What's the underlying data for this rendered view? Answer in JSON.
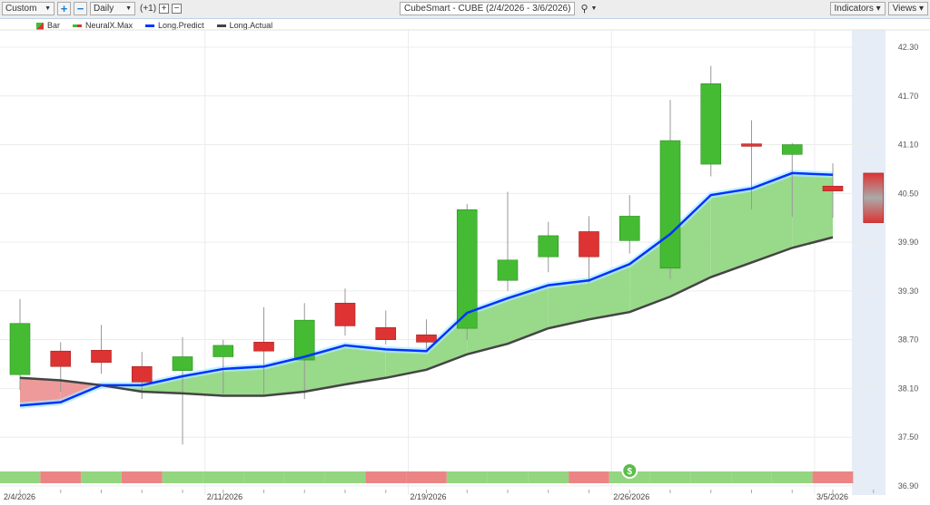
{
  "toolbar": {
    "range_select": "Custom",
    "interval_select": "Daily",
    "offset": "(+1)",
    "title": "CubeSmart - CUBE (2/4/2026 - 3/6/2026)",
    "indicators": "Indicators",
    "views": "Views"
  },
  "legend": [
    {
      "label": "Bar"
    },
    {
      "label": "NeuralX.Max"
    },
    {
      "label": "Long.Predict",
      "color": "#0033ff"
    },
    {
      "label": "Long.Actual",
      "color": "#444444"
    }
  ],
  "colors": {
    "up": "#44bb33",
    "down": "#dd3333",
    "fill_up": "#99d98a",
    "fill_down": "#ef9a9a",
    "forecast_bg": "#e6edf7"
  },
  "chart_data": {
    "type": "candlestick",
    "ylim": [
      36.9,
      42.3
    ],
    "yticks": [
      "42.30",
      "41.70",
      "41.10",
      "40.50",
      "39.90",
      "39.30",
      "38.70",
      "38.10",
      "37.50",
      "36.90"
    ],
    "xtick_labels": [
      {
        "index": 0,
        "label": "2/4/2026"
      },
      {
        "index": 5,
        "label": "2/11/2026"
      },
      {
        "index": 10,
        "label": "2/19/2026"
      },
      {
        "index": 15,
        "label": "2/26/2026"
      },
      {
        "index": 20,
        "label": "3/5/2026"
      }
    ],
    "candles": [
      {
        "o": 38.27,
        "h": 39.2,
        "l": 38.08,
        "c": 38.9
      },
      {
        "o": 38.56,
        "h": 38.67,
        "l": 38.06,
        "c": 38.37
      },
      {
        "o": 38.57,
        "h": 38.88,
        "l": 38.28,
        "c": 38.42
      },
      {
        "o": 38.37,
        "h": 38.55,
        "l": 37.97,
        "c": 38.18
      },
      {
        "o": 38.32,
        "h": 38.73,
        "l": 37.41,
        "c": 38.49
      },
      {
        "o": 38.49,
        "h": 38.7,
        "l": 38.03,
        "c": 38.63
      },
      {
        "o": 38.67,
        "h": 39.1,
        "l": 38.03,
        "c": 38.56
      },
      {
        "o": 38.45,
        "h": 39.15,
        "l": 37.97,
        "c": 38.94
      },
      {
        "o": 39.15,
        "h": 39.33,
        "l": 38.75,
        "c": 38.87
      },
      {
        "o": 38.85,
        "h": 39.06,
        "l": 38.64,
        "c": 38.7
      },
      {
        "o": 38.76,
        "h": 38.95,
        "l": 38.59,
        "c": 38.67
      },
      {
        "o": 38.84,
        "h": 40.37,
        "l": 38.7,
        "c": 40.3
      },
      {
        "o": 39.43,
        "h": 40.52,
        "l": 39.3,
        "c": 39.68
      },
      {
        "o": 39.72,
        "h": 40.15,
        "l": 39.53,
        "c": 39.98
      },
      {
        "o": 40.03,
        "h": 40.22,
        "l": 39.4,
        "c": 39.72
      },
      {
        "o": 39.92,
        "h": 40.48,
        "l": 39.76,
        "c": 40.22
      },
      {
        "o": 39.58,
        "h": 41.65,
        "l": 39.45,
        "c": 41.15
      },
      {
        "o": 40.86,
        "h": 42.07,
        "l": 40.71,
        "c": 41.85
      },
      {
        "o": 41.11,
        "h": 41.4,
        "l": 40.3,
        "c": 41.08
      },
      {
        "o": 40.98,
        "h": 41.12,
        "l": 40.21,
        "c": 41.1
      },
      {
        "o": 40.59,
        "h": 40.87,
        "l": 40.2,
        "c": 40.53
      }
    ],
    "forecast": {
      "high": 40.75,
      "low": 40.14
    },
    "long_predict": [
      37.89,
      37.93,
      38.14,
      38.14,
      38.25,
      38.34,
      38.37,
      38.49,
      38.63,
      38.58,
      38.56,
      39.03,
      39.21,
      39.37,
      39.43,
      39.63,
      40.0,
      40.48,
      40.56,
      40.75,
      40.73
    ],
    "long_actual": [
      38.23,
      38.2,
      38.14,
      38.06,
      38.04,
      38.01,
      38.01,
      38.06,
      38.15,
      38.23,
      38.33,
      38.52,
      38.65,
      38.84,
      38.95,
      39.04,
      39.23,
      39.47,
      39.65,
      39.83,
      39.96
    ],
    "signal_strip": [
      "up",
      "down",
      "up",
      "down",
      "up",
      "up",
      "up",
      "up",
      "up",
      "down",
      "down",
      "up",
      "up",
      "up",
      "down",
      "up",
      "up",
      "up",
      "up",
      "up",
      "down"
    ],
    "signal_marker": {
      "index": 15,
      "label": "$"
    }
  }
}
